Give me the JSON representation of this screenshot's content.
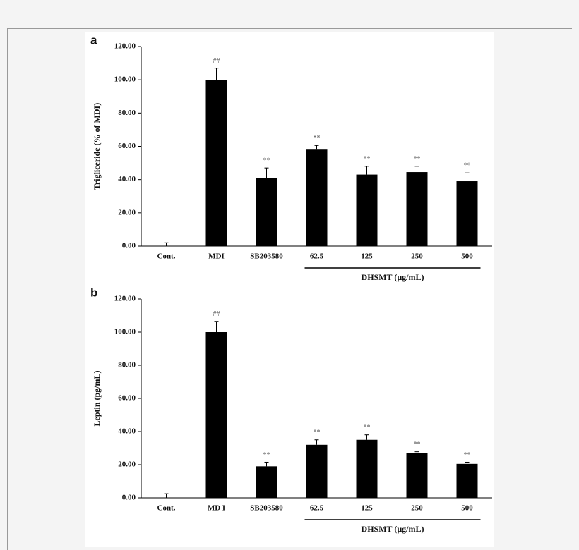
{
  "chart_data": [
    {
      "type": "bar",
      "panel_label": "a",
      "ylabel": "Trigliceride (% of MDI)",
      "categories": [
        "Cont.",
        "MDI",
        "SB203580",
        "62.5",
        "125",
        "250",
        "500"
      ],
      "values": [
        0,
        100,
        41,
        58,
        43,
        44.5,
        39
      ],
      "errors": [
        2,
        7,
        6,
        2.5,
        5,
        3.5,
        5
      ],
      "annotations": [
        null,
        "##",
        "**",
        "**",
        "**",
        "**",
        "**"
      ],
      "color": "#000000",
      "group": {
        "label": "DHSMT (μg/mL)",
        "categories": [
          "62.5",
          "125",
          "250",
          "500"
        ]
      },
      "ylim": [
        0,
        120
      ],
      "yticks": [
        {
          "value": 0,
          "label": "0.00"
        },
        {
          "value": 20,
          "label": "20.00"
        },
        {
          "value": 40,
          "label": "40.00"
        },
        {
          "value": 60,
          "label": "60.00"
        },
        {
          "value": 80,
          "label": "80.00"
        },
        {
          "value": 100,
          "label": "100.00"
        },
        {
          "value": 120,
          "label": "120.00"
        }
      ]
    },
    {
      "type": "bar",
      "panel_label": "b",
      "ylabel": "Leptin (pg/mL)",
      "categories": [
        "Cont.",
        "MD I",
        "SB203580",
        "62.5",
        "125",
        "250",
        "500"
      ],
      "values": [
        0,
        100,
        19,
        32,
        35,
        27,
        20.5
      ],
      "errors": [
        2.5,
        6.5,
        2.5,
        3,
        3,
        0.8,
        1
      ],
      "annotations": [
        null,
        "##",
        "**",
        "**",
        "**",
        "**",
        "**"
      ],
      "color": "#000000",
      "group": {
        "label": "DHSMT (μg/mL)",
        "categories": [
          "62.5",
          "125",
          "250",
          "500"
        ]
      },
      "ylim": [
        0,
        120
      ],
      "yticks": [
        {
          "value": 0,
          "label": "0.00"
        },
        {
          "value": 20,
          "label": "20.00"
        },
        {
          "value": 40,
          "label": "40.00"
        },
        {
          "value": 60,
          "label": "60.00"
        },
        {
          "value": 80,
          "label": "80.00"
        },
        {
          "value": 100,
          "label": "100.00"
        },
        {
          "value": 120,
          "label": "120.00"
        }
      ]
    }
  ]
}
